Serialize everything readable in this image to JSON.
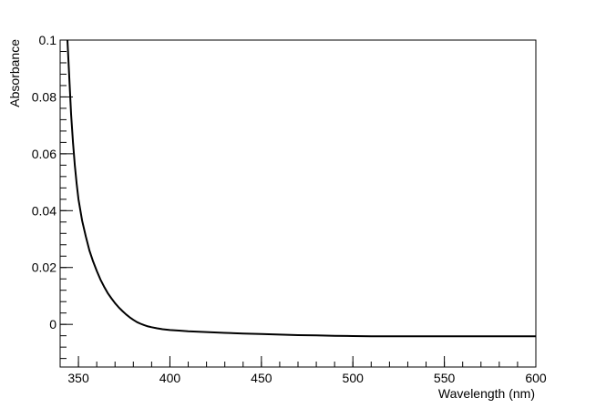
{
  "chart_data": {
    "type": "line",
    "title": "",
    "xlabel": "Wavelength (nm)",
    "ylabel": "Absorbance",
    "xlim": [
      340,
      600
    ],
    "ylim": [
      -0.015,
      0.1
    ],
    "x_ticks": [
      350,
      400,
      450,
      500,
      550,
      600
    ],
    "x_tick_labels": [
      "350",
      "400",
      "450",
      "500",
      "550",
      "600"
    ],
    "x_minor_step": 10,
    "y_ticks": [
      0,
      0.02,
      0.04,
      0.06,
      0.08,
      0.1
    ],
    "y_tick_labels": [
      "0",
      "0.02",
      "0.04",
      "0.06",
      "0.08",
      "0.1"
    ],
    "y_minor_step": 0.004,
    "grid": false,
    "line_color": "#000000",
    "series": [
      {
        "x": [
          344,
          345,
          346,
          347,
          348,
          349,
          350,
          352,
          354,
          356,
          358,
          360,
          362,
          364,
          366,
          368,
          370,
          372,
          374,
          376,
          378,
          380,
          382,
          384,
          386,
          388,
          390,
          393,
          396,
          400,
          405,
          410,
          420,
          430,
          440,
          450,
          460,
          470,
          480,
          490,
          500,
          510,
          520,
          530,
          540,
          550,
          560,
          570,
          580,
          590,
          600
        ],
        "y": [
          0.1,
          0.087,
          0.074,
          0.064,
          0.056,
          0.0495,
          0.044,
          0.0365,
          0.031,
          0.026,
          0.0222,
          0.0188,
          0.0158,
          0.0133,
          0.011,
          0.0092,
          0.0075,
          0.006,
          0.0047,
          0.0035,
          0.0025,
          0.0016,
          0.0008,
          0.0002,
          -0.0003,
          -0.0007,
          -0.001,
          -0.0014,
          -0.0017,
          -0.002,
          -0.0022,
          -0.0024,
          -0.0027,
          -0.003,
          -0.0032,
          -0.0034,
          -0.0036,
          -0.0038,
          -0.0039,
          -0.004,
          -0.0041,
          -0.0042,
          -0.0042,
          -0.0042,
          -0.0042,
          -0.0042,
          -0.0042,
          -0.0042,
          -0.0042,
          -0.0042,
          -0.0042
        ]
      }
    ]
  }
}
